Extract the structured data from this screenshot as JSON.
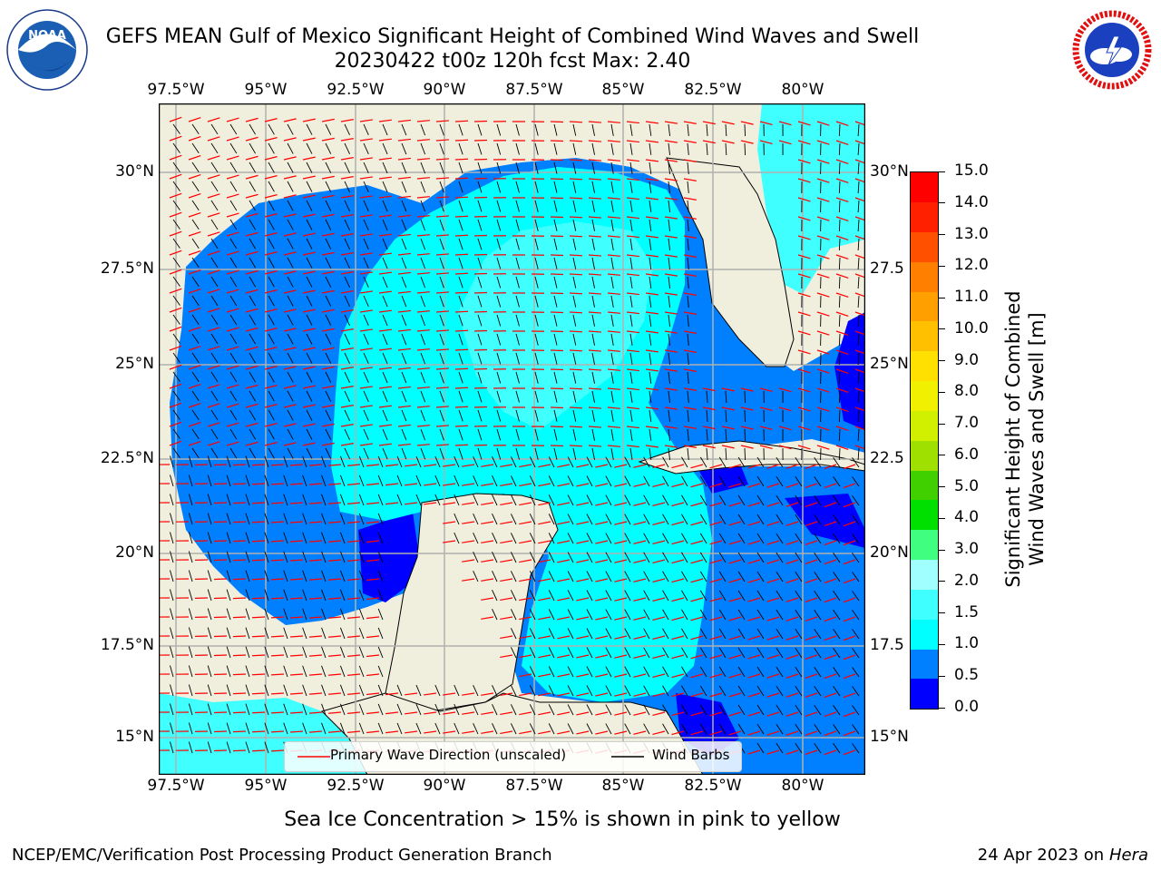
{
  "title": {
    "line1": "GEFS MEAN Gulf of Mexico Significant Height of Combined Wind Waves and Swell",
    "line2": "20230422 t00z 120h fcst   Max: 2.40"
  },
  "logos": {
    "left": {
      "name": "NOAA",
      "text": "NOAA",
      "ring_text": "NATIONAL OCEANIC AND ATMOSPHERIC ADMINISTRATION · U.S. DEPARTMENT OF COMMERCE"
    },
    "right": {
      "name": "National Weather Service",
      "ring_text": "NATIONAL WEATHER SERVICE"
    }
  },
  "map": {
    "lon_ticks": [
      "97.5°W",
      "95°W",
      "92.5°W",
      "90°W",
      "87.5°W",
      "85°W",
      "82.5°W",
      "80°W"
    ],
    "lat_ticks_left": [
      "30°N",
      "27.5°N",
      "25°N",
      "22.5°N",
      "20°N",
      "17.5°N",
      "15°N"
    ],
    "lat_ticks_right": [
      "30°N",
      "27.5",
      "25°N",
      "22.5",
      "20°N",
      "17.5",
      "15°N"
    ],
    "lon_range": [
      -98,
      -78.3
    ],
    "lat_range": [
      14,
      31.6
    ],
    "colors": {
      "land": "#f0eedd",
      "grid": "#b0b0b0",
      "arrows": "#ff0000",
      "barbs": "#000000"
    }
  },
  "legend": {
    "wave_label": "Primary Wave Direction (unscaled)",
    "barb_label": "Wind Barbs"
  },
  "colorbar": {
    "label_line1": "Significant Height of Combined",
    "label_line2": "Wind Waves and Swell [m]",
    "ticks": [
      "15.0",
      "14.0",
      "13.0",
      "12.0",
      "11.0",
      "10.0",
      "9.0",
      "8.0",
      "7.0",
      "6.0",
      "5.0",
      "4.0",
      "3.0",
      "2.0",
      "1.5",
      "1.0",
      "0.5",
      "0.0"
    ],
    "colors": [
      "#0000ff",
      "#0080ff",
      "#00ffff",
      "#40ffff",
      "#a0ffff",
      "#40ff80",
      "#00e000",
      "#40d000",
      "#a0e000",
      "#d0f000",
      "#f0f000",
      "#ffe000",
      "#ffc000",
      "#ffa000",
      "#ff8000",
      "#ff5000",
      "#ff2000",
      "#ff0000"
    ]
  },
  "footer": {
    "ice_note": "Sea Ice Concentration > 15% is shown in pink to yellow",
    "left": "NCEP/EMC/Verification Post Processing Product Generation Branch",
    "right_date": "24 Apr 2023 on ",
    "right_host": "Hera"
  }
}
